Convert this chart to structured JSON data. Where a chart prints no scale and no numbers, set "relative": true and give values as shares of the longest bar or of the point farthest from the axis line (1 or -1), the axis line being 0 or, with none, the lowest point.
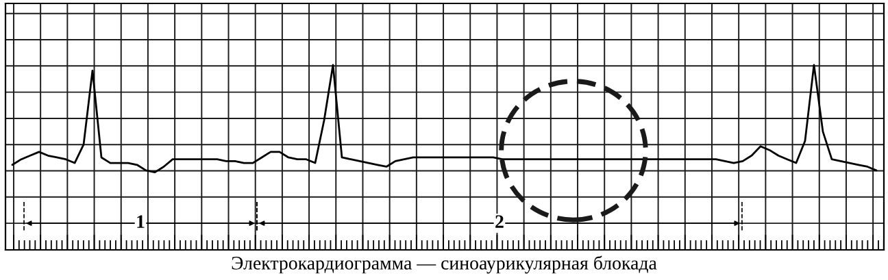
{
  "chart_data": {
    "type": "line",
    "relative": true,
    "grid": true,
    "marker": "none",
    "line_style": "solid",
    "categories": [
      null,
      null,
      null,
      null,
      null,
      null,
      null,
      null,
      null,
      null,
      null,
      null,
      null,
      null,
      null,
      null,
      null,
      null,
      null,
      null,
      null,
      null,
      null,
      null,
      null,
      null,
      null,
      null,
      null,
      null,
      null,
      null,
      null,
      null,
      null,
      null,
      null,
      null,
      null,
      null,
      null,
      null,
      null,
      null,
      null,
      null,
      null,
      null,
      null,
      null,
      null,
      null,
      null,
      null,
      null,
      null,
      null,
      null,
      null,
      null,
      null,
      null,
      null,
      null,
      null,
      null,
      null,
      null,
      null,
      null,
      null,
      null,
      null,
      null,
      null,
      null,
      null,
      null,
      null,
      null,
      null,
      null,
      null,
      null,
      null,
      null,
      null,
      null,
      null,
      null,
      null,
      null,
      null,
      null,
      null,
      null,
      null,
      null
    ],
    "series": [
      {
        "color": "#000000",
        "values": [
          0.46,
          0.49,
          0.51,
          0.53,
          0.51,
          0.5,
          0.49,
          0.47,
          0.57,
          0.97,
          0.5,
          0.47,
          0.47,
          0.47,
          0.46,
          0.43,
          0.42,
          0.45,
          0.49,
          0.49,
          0.49,
          0.49,
          0.49,
          0.49,
          0.48,
          0.48,
          0.47,
          0.47,
          0.5,
          0.53,
          0.53,
          0.5,
          0.49,
          0.49,
          0.47,
          0.7,
          1.0,
          0.5,
          0.49,
          0.48,
          0.47,
          0.46,
          0.45,
          0.48,
          0.49,
          0.5,
          0.5,
          0.5,
          0.5,
          0.5,
          0.5,
          0.5,
          0.5,
          0.5,
          0.5,
          0.49,
          0.49,
          0.49,
          0.49,
          0.49,
          0.49,
          0.49,
          0.49,
          0.49,
          0.49,
          0.49,
          0.49,
          0.49,
          0.49,
          0.49,
          0.49,
          0.49,
          0.49,
          0.49,
          0.49,
          0.49,
          0.49,
          0.49,
          0.49,
          0.49,
          0.48,
          0.47,
          0.48,
          0.51,
          0.56,
          0.54,
          0.51,
          0.49,
          0.47,
          0.59,
          1.0,
          0.64,
          0.49,
          0.48,
          0.47,
          0.46,
          0.45,
          0.43
        ]
      }
    ],
    "annotations": [
      "1",
      "2",
      "Электрокардиограмма — синоаурикулярная блокада"
    ]
  }
}
